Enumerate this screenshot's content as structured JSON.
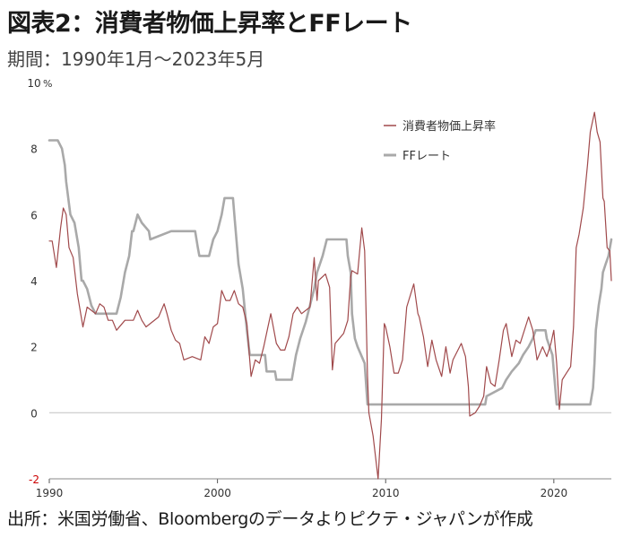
{
  "header": {
    "title": "図表2：消費者物価上昇率とFFレート",
    "period": "期間：1990年1月～2023年5月"
  },
  "footer": {
    "source": "出所：米国労働省、Bloombergのデータよりピクテ・ジャパンが作成"
  },
  "chart_data": {
    "type": "line",
    "title": "図表2：消費者物価上昇率とFFレート",
    "ylabel": "%",
    "xlabel": "",
    "xlim": [
      1990.0,
      2023.42
    ],
    "ylim": [
      -2,
      10
    ],
    "yticks": [
      -2,
      0,
      2,
      4,
      6,
      8,
      10
    ],
    "ytick_labels": [
      "-2",
      "0",
      "2",
      "4",
      "6",
      "8",
      "10"
    ],
    "xticks": [
      1990,
      2000,
      2010,
      2020
    ],
    "xtick_labels": [
      "1990",
      "2000",
      "2010",
      "2020"
    ],
    "negative_tick_color": "#cc0000",
    "grid": false,
    "legend": "top-right",
    "series": [
      {
        "name": "消費者物価上昇率",
        "color": "#a0494b",
        "points": [
          [
            1990.0,
            5.2
          ],
          [
            1990.17,
            5.2
          ],
          [
            1990.42,
            4.4
          ],
          [
            1990.67,
            5.6
          ],
          [
            1990.83,
            6.2
          ],
          [
            1991.0,
            6.0
          ],
          [
            1991.17,
            5.0
          ],
          [
            1991.42,
            4.7
          ],
          [
            1991.67,
            3.6
          ],
          [
            1992.0,
            2.6
          ],
          [
            1992.25,
            3.2
          ],
          [
            1992.5,
            3.1
          ],
          [
            1992.75,
            3.0
          ],
          [
            1993.0,
            3.3
          ],
          [
            1993.25,
            3.2
          ],
          [
            1993.5,
            2.8
          ],
          [
            1993.75,
            2.8
          ],
          [
            1994.0,
            2.5
          ],
          [
            1994.5,
            2.8
          ],
          [
            1995.0,
            2.8
          ],
          [
            1995.25,
            3.1
          ],
          [
            1995.5,
            2.8
          ],
          [
            1995.75,
            2.6
          ],
          [
            1996.0,
            2.7
          ],
          [
            1996.5,
            2.9
          ],
          [
            1996.83,
            3.3
          ],
          [
            1997.0,
            3.0
          ],
          [
            1997.25,
            2.5
          ],
          [
            1997.5,
            2.2
          ],
          [
            1997.75,
            2.1
          ],
          [
            1998.0,
            1.6
          ],
          [
            1998.5,
            1.7
          ],
          [
            1999.0,
            1.6
          ],
          [
            1999.25,
            2.3
          ],
          [
            1999.5,
            2.1
          ],
          [
            1999.75,
            2.6
          ],
          [
            2000.0,
            2.7
          ],
          [
            2000.25,
            3.7
          ],
          [
            2000.5,
            3.4
          ],
          [
            2000.75,
            3.4
          ],
          [
            2001.0,
            3.7
          ],
          [
            2001.25,
            3.3
          ],
          [
            2001.5,
            3.2
          ],
          [
            2001.75,
            2.7
          ],
          [
            2001.92,
            1.6
          ],
          [
            2002.0,
            1.1
          ],
          [
            2002.25,
            1.6
          ],
          [
            2002.5,
            1.5
          ],
          [
            2002.75,
            2.0
          ],
          [
            2003.0,
            2.6
          ],
          [
            2003.17,
            3.0
          ],
          [
            2003.5,
            2.1
          ],
          [
            2003.75,
            1.9
          ],
          [
            2004.0,
            1.9
          ],
          [
            2004.25,
            2.3
          ],
          [
            2004.5,
            3.0
          ],
          [
            2004.75,
            3.2
          ],
          [
            2005.0,
            3.0
          ],
          [
            2005.5,
            3.2
          ],
          [
            2005.75,
            4.7
          ],
          [
            2005.92,
            3.4
          ],
          [
            2006.0,
            4.0
          ],
          [
            2006.42,
            4.2
          ],
          [
            2006.67,
            3.8
          ],
          [
            2006.83,
            1.3
          ],
          [
            2007.0,
            2.1
          ],
          [
            2007.5,
            2.4
          ],
          [
            2007.75,
            2.8
          ],
          [
            2007.92,
            4.1
          ],
          [
            2008.0,
            4.3
          ],
          [
            2008.33,
            4.2
          ],
          [
            2008.58,
            5.6
          ],
          [
            2008.75,
            4.9
          ],
          [
            2008.92,
            1.1
          ],
          [
            2009.0,
            0.0
          ],
          [
            2009.25,
            -0.7
          ],
          [
            2009.55,
            -2.0
          ],
          [
            2009.75,
            -0.2
          ],
          [
            2009.92,
            2.7
          ],
          [
            2010.0,
            2.6
          ],
          [
            2010.25,
            2.0
          ],
          [
            2010.5,
            1.2
          ],
          [
            2010.75,
            1.2
          ],
          [
            2011.0,
            1.6
          ],
          [
            2011.25,
            3.2
          ],
          [
            2011.67,
            3.9
          ],
          [
            2011.92,
            3.0
          ],
          [
            2012.0,
            2.9
          ],
          [
            2012.25,
            2.3
          ],
          [
            2012.5,
            1.4
          ],
          [
            2012.75,
            2.2
          ],
          [
            2013.0,
            1.6
          ],
          [
            2013.33,
            1.1
          ],
          [
            2013.58,
            2.0
          ],
          [
            2013.83,
            1.2
          ],
          [
            2014.0,
            1.6
          ],
          [
            2014.5,
            2.1
          ],
          [
            2014.75,
            1.7
          ],
          [
            2014.92,
            0.8
          ],
          [
            2015.0,
            -0.1
          ],
          [
            2015.33,
            0.0
          ],
          [
            2015.58,
            0.2
          ],
          [
            2015.83,
            0.5
          ],
          [
            2016.0,
            1.4
          ],
          [
            2016.25,
            0.9
          ],
          [
            2016.5,
            0.8
          ],
          [
            2016.75,
            1.6
          ],
          [
            2017.0,
            2.5
          ],
          [
            2017.17,
            2.7
          ],
          [
            2017.5,
            1.7
          ],
          [
            2017.75,
            2.2
          ],
          [
            2018.0,
            2.1
          ],
          [
            2018.5,
            2.9
          ],
          [
            2018.75,
            2.5
          ],
          [
            2018.92,
            1.9
          ],
          [
            2019.0,
            1.6
          ],
          [
            2019.33,
            2.0
          ],
          [
            2019.58,
            1.7
          ],
          [
            2019.83,
            2.1
          ],
          [
            2020.0,
            2.5
          ],
          [
            2020.17,
            1.5
          ],
          [
            2020.33,
            0.1
          ],
          [
            2020.5,
            1.0
          ],
          [
            2020.75,
            1.2
          ],
          [
            2021.0,
            1.4
          ],
          [
            2021.17,
            2.6
          ],
          [
            2021.33,
            5.0
          ],
          [
            2021.5,
            5.4
          ],
          [
            2021.75,
            6.2
          ],
          [
            2022.0,
            7.5
          ],
          [
            2022.17,
            8.5
          ],
          [
            2022.42,
            9.1
          ],
          [
            2022.58,
            8.5
          ],
          [
            2022.75,
            8.2
          ],
          [
            2022.92,
            6.5
          ],
          [
            2023.0,
            6.4
          ],
          [
            2023.17,
            5.0
          ],
          [
            2023.33,
            4.9
          ],
          [
            2023.42,
            4.0
          ]
        ]
      },
      {
        "name": "FFレート",
        "color": "#a9a9a9",
        "points": [
          [
            1990.0,
            8.25
          ],
          [
            1990.5,
            8.25
          ],
          [
            1990.75,
            8.0
          ],
          [
            1990.92,
            7.5
          ],
          [
            1991.0,
            7.0
          ],
          [
            1991.25,
            6.0
          ],
          [
            1991.5,
            5.75
          ],
          [
            1991.75,
            5.0
          ],
          [
            1991.92,
            4.0
          ],
          [
            1992.0,
            4.0
          ],
          [
            1992.25,
            3.75
          ],
          [
            1992.5,
            3.25
          ],
          [
            1992.75,
            3.0
          ],
          [
            1994.0,
            3.0
          ],
          [
            1994.25,
            3.5
          ],
          [
            1994.5,
            4.25
          ],
          [
            1994.75,
            4.75
          ],
          [
            1994.92,
            5.5
          ],
          [
            1995.0,
            5.5
          ],
          [
            1995.25,
            6.0
          ],
          [
            1995.5,
            5.75
          ],
          [
            1995.92,
            5.5
          ],
          [
            1996.0,
            5.25
          ],
          [
            1997.25,
            5.5
          ],
          [
            1998.67,
            5.5
          ],
          [
            1998.83,
            5.0
          ],
          [
            1998.92,
            4.75
          ],
          [
            1999.5,
            4.75
          ],
          [
            1999.75,
            5.25
          ],
          [
            2000.0,
            5.5
          ],
          [
            2000.25,
            6.0
          ],
          [
            2000.42,
            6.5
          ],
          [
            2000.92,
            6.5
          ],
          [
            2001.0,
            6.0
          ],
          [
            2001.25,
            4.5
          ],
          [
            2001.5,
            3.75
          ],
          [
            2001.75,
            2.5
          ],
          [
            2001.92,
            1.75
          ],
          [
            2002.83,
            1.75
          ],
          [
            2002.92,
            1.25
          ],
          [
            2003.42,
            1.25
          ],
          [
            2003.5,
            1.0
          ],
          [
            2004.42,
            1.0
          ],
          [
            2004.67,
            1.75
          ],
          [
            2004.92,
            2.25
          ],
          [
            2005.25,
            2.75
          ],
          [
            2005.5,
            3.25
          ],
          [
            2005.75,
            3.75
          ],
          [
            2005.92,
            4.25
          ],
          [
            2006.25,
            4.75
          ],
          [
            2006.5,
            5.25
          ],
          [
            2007.67,
            5.25
          ],
          [
            2007.75,
            4.75
          ],
          [
            2007.92,
            4.25
          ],
          [
            2008.0,
            3.0
          ],
          [
            2008.17,
            2.25
          ],
          [
            2008.33,
            2.0
          ],
          [
            2008.75,
            1.5
          ],
          [
            2008.92,
            0.25
          ],
          [
            2015.92,
            0.25
          ],
          [
            2016.0,
            0.5
          ],
          [
            2016.92,
            0.75
          ],
          [
            2017.17,
            1.0
          ],
          [
            2017.5,
            1.25
          ],
          [
            2017.92,
            1.5
          ],
          [
            2018.17,
            1.75
          ],
          [
            2018.5,
            2.0
          ],
          [
            2018.75,
            2.25
          ],
          [
            2018.92,
            2.5
          ],
          [
            2019.5,
            2.5
          ],
          [
            2019.58,
            2.25
          ],
          [
            2019.75,
            2.0
          ],
          [
            2019.92,
            1.75
          ],
          [
            2020.17,
            0.25
          ],
          [
            2022.17,
            0.25
          ],
          [
            2022.33,
            0.75
          ],
          [
            2022.42,
            1.5
          ],
          [
            2022.5,
            2.5
          ],
          [
            2022.67,
            3.25
          ],
          [
            2022.83,
            3.75
          ],
          [
            2022.92,
            4.25
          ],
          [
            2023.08,
            4.5
          ],
          [
            2023.25,
            4.75
          ],
          [
            2023.42,
            5.25
          ]
        ]
      }
    ]
  }
}
